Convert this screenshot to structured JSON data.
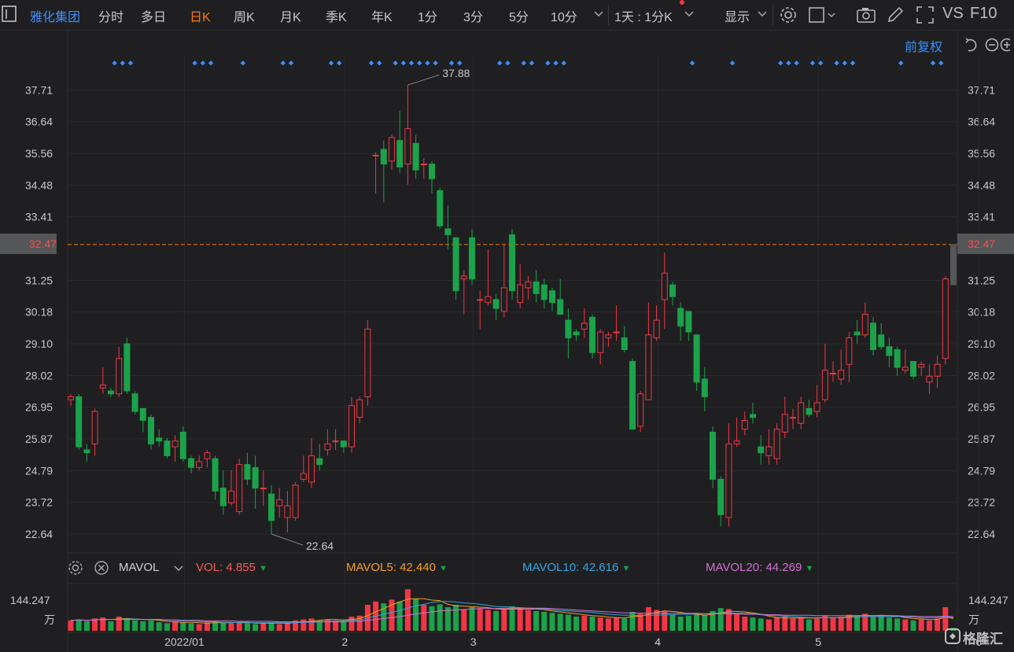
{
  "toolbar": {
    "title": "雅化集团",
    "tabs": [
      "分时",
      "多日",
      "日K",
      "周K",
      "月K",
      "季K",
      "年K",
      "1分",
      "3分",
      "5分",
      "10分"
    ],
    "active_tab": "日K",
    "period_select": "1天 : 1分K",
    "display_label": "显示",
    "vs_label": "VS",
    "f10_label": "F10"
  },
  "adjust_label": "前复权",
  "current_price_label": "32.47",
  "max_label": "37.88",
  "min_label": "22.64",
  "volume_legend": {
    "indicator": "MAVOL",
    "vol_label": "VOL:",
    "vol_value": "4.855",
    "ma5_label": "MAVOL5:",
    "ma5_value": "42.440",
    "ma10_label": "MAVOL10:",
    "ma10_value": "42.616",
    "ma20_label": "MAVOL20:",
    "ma20_value": "44.269"
  },
  "volume_axis": {
    "max_label": "144.247",
    "unit": "万"
  },
  "watermark": "格隆汇",
  "colors": {
    "up": "#f23645",
    "down": "#1ba24a",
    "accent": "#3d8ef7",
    "active": "#ff7a00",
    "ma5": "#f0a020",
    "ma10": "#2fa6e0",
    "ma20": "#d070d0",
    "price_line": "#ff7a00"
  },
  "chart_data": {
    "type": "candlestick",
    "y_ticks": [
      "37.71",
      "36.64",
      "35.56",
      "34.48",
      "33.41",
      "32.47",
      "31.25",
      "30.18",
      "29.10",
      "28.02",
      "26.95",
      "25.87",
      "24.79",
      "23.72",
      "22.64"
    ],
    "y_tick_values": [
      37.71,
      36.64,
      35.56,
      34.48,
      33.41,
      32.47,
      31.25,
      30.18,
      29.1,
      28.02,
      26.95,
      25.87,
      24.79,
      23.72,
      22.64
    ],
    "ylim": [
      22.0,
      38.9
    ],
    "x_labels": [
      "2022/01",
      "2",
      "3",
      "4",
      "5",
      "6"
    ],
    "x_label_index": [
      7,
      27,
      43,
      66,
      86,
      106
    ],
    "candles": [
      [
        27.2,
        27.3,
        27.4,
        27.0
      ],
      [
        27.3,
        25.6,
        27.4,
        25.5
      ],
      [
        25.5,
        25.4,
        25.7,
        25.1
      ],
      [
        25.7,
        26.8,
        26.9,
        25.3
      ],
      [
        27.6,
        27.7,
        28.3,
        27.4
      ],
      [
        27.5,
        27.4,
        27.6,
        27.3
      ],
      [
        27.4,
        28.6,
        29.0,
        27.3
      ],
      [
        29.1,
        27.5,
        29.3,
        27.4
      ],
      [
        27.4,
        26.8,
        27.5,
        26.7
      ],
      [
        26.9,
        26.5,
        26.9,
        26.1
      ],
      [
        26.6,
        25.7,
        26.7,
        25.5
      ],
      [
        25.9,
        25.8,
        26.2,
        25.6
      ],
      [
        25.8,
        25.3,
        25.9,
        25.2
      ],
      [
        25.6,
        25.8,
        26.0,
        25.1
      ],
      [
        26.1,
        25.2,
        26.3,
        25.1
      ],
      [
        25.2,
        24.9,
        25.3,
        24.7
      ],
      [
        24.9,
        25.1,
        25.3,
        24.8
      ],
      [
        25.2,
        25.4,
        25.5,
        24.9
      ],
      [
        25.2,
        24.1,
        25.3,
        23.8
      ],
      [
        24.2,
        23.6,
        24.8,
        23.3
      ],
      [
        23.7,
        24.1,
        24.8,
        23.6
      ],
      [
        23.4,
        25.0,
        25.2,
        23.3
      ],
      [
        25.0,
        24.5,
        25.4,
        24.3
      ],
      [
        24.9,
        24.2,
        25.3,
        23.5
      ],
      [
        24.2,
        24.2,
        24.8,
        23.6
      ],
      [
        24.0,
        23.1,
        24.3,
        22.64
      ],
      [
        23.6,
        23.8,
        24.2,
        23.2
      ],
      [
        23.2,
        23.6,
        24.1,
        22.7
      ],
      [
        23.2,
        24.3,
        24.4,
        23.1
      ],
      [
        24.5,
        24.7,
        25.3,
        24.4
      ],
      [
        24.4,
        25.3,
        25.9,
        24.2
      ],
      [
        25.2,
        25.0,
        25.7,
        24.8
      ],
      [
        25.5,
        25.7,
        26.2,
        25.3
      ],
      [
        25.8,
        25.8,
        26.2,
        25.5
      ],
      [
        25.8,
        25.6,
        25.8,
        25.4
      ],
      [
        25.6,
        27.0,
        27.3,
        25.4
      ],
      [
        26.6,
        27.2,
        27.3,
        26.4
      ],
      [
        27.3,
        29.6,
        29.9,
        27.0
      ],
      [
        35.5,
        35.5,
        35.6,
        34.2
      ],
      [
        35.7,
        35.2,
        36.0,
        33.9
      ],
      [
        35.3,
        36.1,
        36.2,
        35.0
      ],
      [
        36.0,
        35.1,
        37.0,
        34.9
      ],
      [
        35.2,
        36.4,
        37.88,
        34.5
      ],
      [
        35.9,
        35.0,
        36.2,
        34.7
      ],
      [
        35.2,
        35.2,
        35.4,
        34.7
      ],
      [
        35.2,
        34.7,
        35.3,
        34.2
      ],
      [
        34.3,
        33.1,
        34.4,
        33.0
      ],
      [
        33.0,
        32.8,
        33.8,
        32.3
      ],
      [
        32.7,
        30.9,
        32.7,
        30.6
      ],
      [
        31.3,
        31.4,
        31.6,
        30.1
      ],
      [
        32.7,
        31.3,
        33.0,
        31.1
      ],
      [
        30.6,
        30.6,
        30.9,
        29.6
      ],
      [
        30.5,
        30.7,
        32.3,
        30.4
      ],
      [
        30.6,
        30.3,
        30.8,
        29.9
      ],
      [
        30.2,
        31.0,
        32.5,
        30.0
      ],
      [
        32.8,
        30.9,
        33.0,
        30.6
      ],
      [
        30.5,
        31.1,
        31.8,
        30.3
      ],
      [
        31.0,
        31.2,
        31.4,
        30.6
      ],
      [
        31.2,
        30.8,
        31.6,
        30.5
      ],
      [
        31.1,
        30.6,
        31.3,
        30.3
      ],
      [
        30.9,
        30.5,
        31.0,
        30.2
      ],
      [
        30.6,
        30.1,
        31.3,
        30.1
      ],
      [
        29.9,
        29.3,
        30.3,
        28.6
      ],
      [
        29.5,
        29.4,
        29.6,
        29.2
      ],
      [
        29.6,
        29.8,
        30.3,
        29.3
      ],
      [
        30.0,
        28.8,
        30.1,
        28.6
      ],
      [
        28.8,
        29.5,
        29.6,
        28.4
      ],
      [
        29.3,
        29.4,
        29.5,
        29.0
      ],
      [
        29.5,
        29.5,
        30.4,
        29.2
      ],
      [
        29.3,
        28.9,
        29.7,
        28.8
      ],
      [
        28.5,
        26.2,
        28.6,
        26.2
      ],
      [
        26.3,
        27.4,
        27.5,
        26.1
      ],
      [
        27.2,
        29.4,
        30.5,
        27.2
      ],
      [
        29.3,
        29.9,
        30.4,
        29.2
      ],
      [
        30.6,
        31.5,
        32.2,
        29.6
      ],
      [
        31.1,
        30.7,
        31.2,
        30.4
      ],
      [
        30.3,
        29.7,
        30.5,
        29.2
      ],
      [
        30.2,
        29.5,
        30.2,
        29.2
      ],
      [
        29.4,
        27.8,
        29.4,
        27.5
      ],
      [
        27.9,
        27.3,
        28.3,
        26.8
      ],
      [
        26.1,
        24.5,
        26.3,
        24.2
      ],
      [
        24.5,
        23.3,
        24.6,
        22.9
      ],
      [
        23.2,
        25.7,
        26.4,
        22.9
      ],
      [
        25.7,
        25.8,
        26.6,
        25.6
      ],
      [
        26.2,
        26.5,
        26.8,
        26.0
      ],
      [
        26.7,
        26.6,
        27.1,
        26.4
      ],
      [
        25.6,
        25.4,
        26.0,
        25.0
      ],
      [
        25.3,
        25.6,
        26.2,
        25.0
      ],
      [
        25.2,
        26.2,
        26.4,
        25.0
      ],
      [
        26.1,
        26.7,
        27.3,
        25.9
      ],
      [
        26.6,
        26.6,
        26.9,
        26.2
      ],
      [
        26.4,
        27.1,
        27.3,
        26.2
      ],
      [
        26.9,
        26.7,
        27.2,
        26.6
      ],
      [
        26.8,
        27.1,
        27.7,
        26.6
      ],
      [
        27.2,
        28.2,
        29.1,
        27.1
      ],
      [
        28.1,
        28.1,
        28.5,
        27.8
      ],
      [
        27.9,
        28.2,
        28.9,
        27.7
      ],
      [
        28.4,
        29.3,
        29.5,
        27.8
      ],
      [
        29.5,
        29.4,
        29.9,
        29.1
      ],
      [
        29.4,
        30.1,
        30.5,
        29.3
      ],
      [
        29.8,
        28.9,
        30.0,
        28.7
      ],
      [
        29.4,
        29.0,
        29.8,
        28.9
      ],
      [
        29.0,
        28.7,
        29.3,
        28.3
      ],
      [
        28.9,
        28.3,
        29.0,
        28.0
      ],
      [
        28.2,
        28.3,
        28.9,
        28.1
      ],
      [
        28.5,
        28.0,
        28.5,
        27.9
      ],
      [
        28.3,
        28.4,
        28.5,
        28.0
      ],
      [
        27.8,
        28.0,
        28.4,
        27.4
      ],
      [
        28.0,
        28.4,
        28.7,
        27.6
      ],
      [
        28.6,
        31.3,
        31.4,
        28.4
      ],
      [
        32.47,
        31.1,
        32.47,
        31.1
      ]
    ],
    "volumes": [
      0.22,
      0.24,
      0.2,
      0.26,
      0.28,
      0.2,
      0.3,
      0.26,
      0.22,
      0.2,
      0.22,
      0.18,
      0.16,
      0.2,
      0.18,
      0.16,
      0.14,
      0.18,
      0.2,
      0.18,
      0.16,
      0.18,
      0.16,
      0.14,
      0.16,
      0.18,
      0.14,
      0.16,
      0.22,
      0.24,
      0.26,
      0.22,
      0.24,
      0.22,
      0.2,
      0.3,
      0.32,
      0.55,
      0.62,
      0.58,
      0.66,
      0.62,
      0.88,
      0.68,
      0.55,
      0.52,
      0.56,
      0.5,
      0.55,
      0.46,
      0.5,
      0.48,
      0.44,
      0.42,
      0.46,
      0.52,
      0.48,
      0.44,
      0.42,
      0.4,
      0.38,
      0.36,
      0.34,
      0.3,
      0.32,
      0.3,
      0.28,
      0.26,
      0.28,
      0.26,
      0.4,
      0.36,
      0.5,
      0.44,
      0.42,
      0.34,
      0.3,
      0.32,
      0.36,
      0.34,
      0.42,
      0.48,
      0.46,
      0.36,
      0.3,
      0.28,
      0.26,
      0.24,
      0.28,
      0.3,
      0.26,
      0.28,
      0.24,
      0.26,
      0.32,
      0.28,
      0.3,
      0.34,
      0.32,
      0.36,
      0.3,
      0.32,
      0.28,
      0.26,
      0.24,
      0.22,
      0.24,
      0.22,
      0.26,
      0.5,
      0.06
    ],
    "mavol5": [
      0.22,
      0.23,
      0.22,
      0.23,
      0.24,
      0.24,
      0.25,
      0.26,
      0.25,
      0.24,
      0.24,
      0.22,
      0.2,
      0.19,
      0.18,
      0.18,
      0.17,
      0.16,
      0.17,
      0.17,
      0.17,
      0.18,
      0.18,
      0.16,
      0.16,
      0.16,
      0.16,
      0.16,
      0.17,
      0.19,
      0.2,
      0.22,
      0.24,
      0.24,
      0.23,
      0.24,
      0.26,
      0.32,
      0.4,
      0.47,
      0.55,
      0.61,
      0.67,
      0.68,
      0.68,
      0.65,
      0.64,
      0.56,
      0.53,
      0.52,
      0.51,
      0.5,
      0.49,
      0.46,
      0.46,
      0.46,
      0.46,
      0.46,
      0.46,
      0.45,
      0.42,
      0.4,
      0.38,
      0.36,
      0.34,
      0.32,
      0.31,
      0.29,
      0.28,
      0.27,
      0.3,
      0.31,
      0.35,
      0.39,
      0.42,
      0.41,
      0.39,
      0.36,
      0.35,
      0.33,
      0.35,
      0.38,
      0.41,
      0.41,
      0.4,
      0.38,
      0.35,
      0.31,
      0.28,
      0.27,
      0.27,
      0.27,
      0.27,
      0.27,
      0.28,
      0.28,
      0.28,
      0.3,
      0.32,
      0.33,
      0.32,
      0.33,
      0.32,
      0.31,
      0.28,
      0.26,
      0.25,
      0.24,
      0.24,
      0.29,
      0.26
    ],
    "mavol10": [
      0.22,
      0.23,
      0.22,
      0.23,
      0.24,
      0.24,
      0.24,
      0.25,
      0.25,
      0.24,
      0.24,
      0.24,
      0.23,
      0.22,
      0.21,
      0.21,
      0.2,
      0.19,
      0.19,
      0.18,
      0.18,
      0.17,
      0.17,
      0.17,
      0.17,
      0.17,
      0.17,
      0.17,
      0.17,
      0.18,
      0.18,
      0.19,
      0.2,
      0.2,
      0.21,
      0.22,
      0.23,
      0.27,
      0.31,
      0.35,
      0.39,
      0.43,
      0.48,
      0.53,
      0.56,
      0.6,
      0.62,
      0.62,
      0.61,
      0.59,
      0.58,
      0.56,
      0.54,
      0.51,
      0.51,
      0.5,
      0.49,
      0.48,
      0.47,
      0.46,
      0.45,
      0.43,
      0.42,
      0.41,
      0.4,
      0.39,
      0.37,
      0.35,
      0.34,
      0.33,
      0.33,
      0.32,
      0.33,
      0.33,
      0.34,
      0.34,
      0.35,
      0.35,
      0.36,
      0.36,
      0.37,
      0.37,
      0.38,
      0.37,
      0.37,
      0.36,
      0.34,
      0.33,
      0.32,
      0.31,
      0.3,
      0.29,
      0.28,
      0.28,
      0.28,
      0.28,
      0.28,
      0.28,
      0.29,
      0.3,
      0.3,
      0.3,
      0.3,
      0.3,
      0.3,
      0.29,
      0.28,
      0.28,
      0.28,
      0.29,
      0.28
    ],
    "mavol20": [
      0.22,
      0.23,
      0.22,
      0.23,
      0.24,
      0.24,
      0.24,
      0.24,
      0.24,
      0.24,
      0.24,
      0.24,
      0.23,
      0.23,
      0.22,
      0.22,
      0.22,
      0.21,
      0.21,
      0.21,
      0.21,
      0.2,
      0.2,
      0.2,
      0.2,
      0.2,
      0.19,
      0.19,
      0.19,
      0.19,
      0.19,
      0.19,
      0.19,
      0.19,
      0.19,
      0.2,
      0.2,
      0.22,
      0.24,
      0.26,
      0.28,
      0.3,
      0.33,
      0.36,
      0.38,
      0.4,
      0.42,
      0.43,
      0.44,
      0.45,
      0.46,
      0.47,
      0.47,
      0.47,
      0.48,
      0.48,
      0.48,
      0.48,
      0.48,
      0.48,
      0.47,
      0.46,
      0.45,
      0.44,
      0.43,
      0.42,
      0.41,
      0.4,
      0.39,
      0.38,
      0.38,
      0.37,
      0.37,
      0.37,
      0.37,
      0.37,
      0.37,
      0.37,
      0.37,
      0.36,
      0.36,
      0.36,
      0.36,
      0.36,
      0.35,
      0.35,
      0.35,
      0.34,
      0.34,
      0.33,
      0.33,
      0.33,
      0.33,
      0.32,
      0.32,
      0.32,
      0.32,
      0.32,
      0.32,
      0.32,
      0.32,
      0.32,
      0.32,
      0.32,
      0.31,
      0.31,
      0.3,
      0.3,
      0.3,
      0.31,
      0.3
    ],
    "signal_marker_index": [
      3,
      4,
      5,
      13,
      14,
      15,
      19,
      24,
      25,
      30,
      31,
      35,
      36,
      38,
      39,
      40,
      41,
      42,
      43,
      45,
      46,
      51,
      52,
      54,
      55,
      57,
      58,
      59,
      75,
      80,
      86,
      87,
      88,
      90,
      91,
      93,
      94,
      95,
      101,
      105,
      106
    ]
  }
}
